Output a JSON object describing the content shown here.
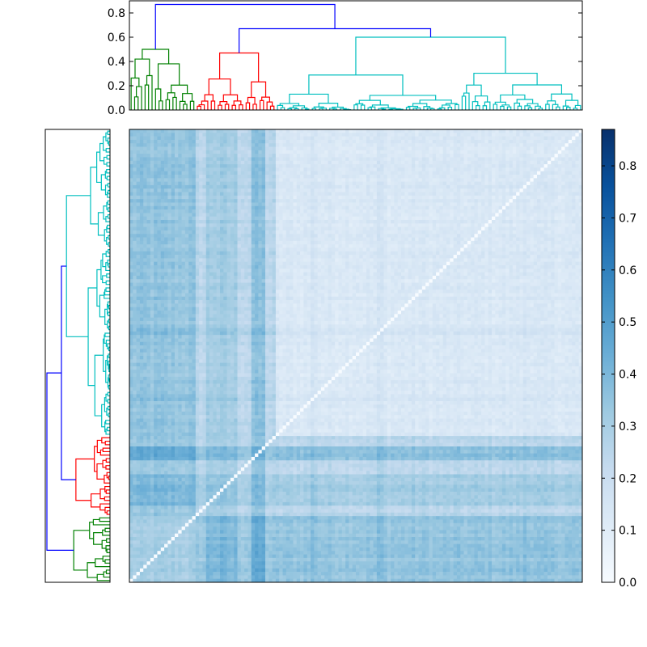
{
  "figure": {
    "description_free": true
  },
  "chart_data": [
    {
      "type": "dendrogram",
      "orientation": "top",
      "ylim": [
        0,
        0.9
      ],
      "yticks": [
        0.0,
        0.2,
        0.4,
        0.6,
        0.8
      ],
      "ytick_labels": [
        "0.0",
        "0.2",
        "0.4",
        "0.6",
        "0.8"
      ],
      "n_leaves": 130,
      "clusters": [
        {
          "color": "#008000",
          "leaves": [
            0,
            18
          ],
          "height": 0.5
        },
        {
          "color": "#ff0000",
          "leaves": [
            19,
            41
          ],
          "height": 0.47
        },
        {
          "color": "#00bfbf",
          "leaves": [
            42,
            129
          ],
          "height": 0.6
        }
      ],
      "root_link_color": "#0000ff",
      "root_height": 0.87,
      "second_merge_height": 0.67
    },
    {
      "type": "dendrogram",
      "orientation": "left",
      "n_leaves": 130,
      "clusters": [
        {
          "color": "#00bfbf",
          "leaves": [
            0,
            87
          ]
        },
        {
          "color": "#ff0000",
          "leaves": [
            88,
            110
          ]
        },
        {
          "color": "#008000",
          "leaves": [
            111,
            129
          ]
        }
      ],
      "root_link_color": "#0000ff"
    },
    {
      "type": "heatmap",
      "colormap": "Blues",
      "n_rows": 130,
      "n_cols": 130,
      "vmin": 0.0,
      "vmax": 0.87,
      "diagonal_value": 0.0,
      "colorbar": {
        "ticks": [
          0.0,
          0.1,
          0.2,
          0.3,
          0.4,
          0.5,
          0.6,
          0.7,
          0.8
        ],
        "tick_labels": [
          "0.0",
          "0.1",
          "0.2",
          "0.3",
          "0.4",
          "0.5",
          "0.6",
          "0.7",
          "0.8"
        ]
      }
    }
  ]
}
